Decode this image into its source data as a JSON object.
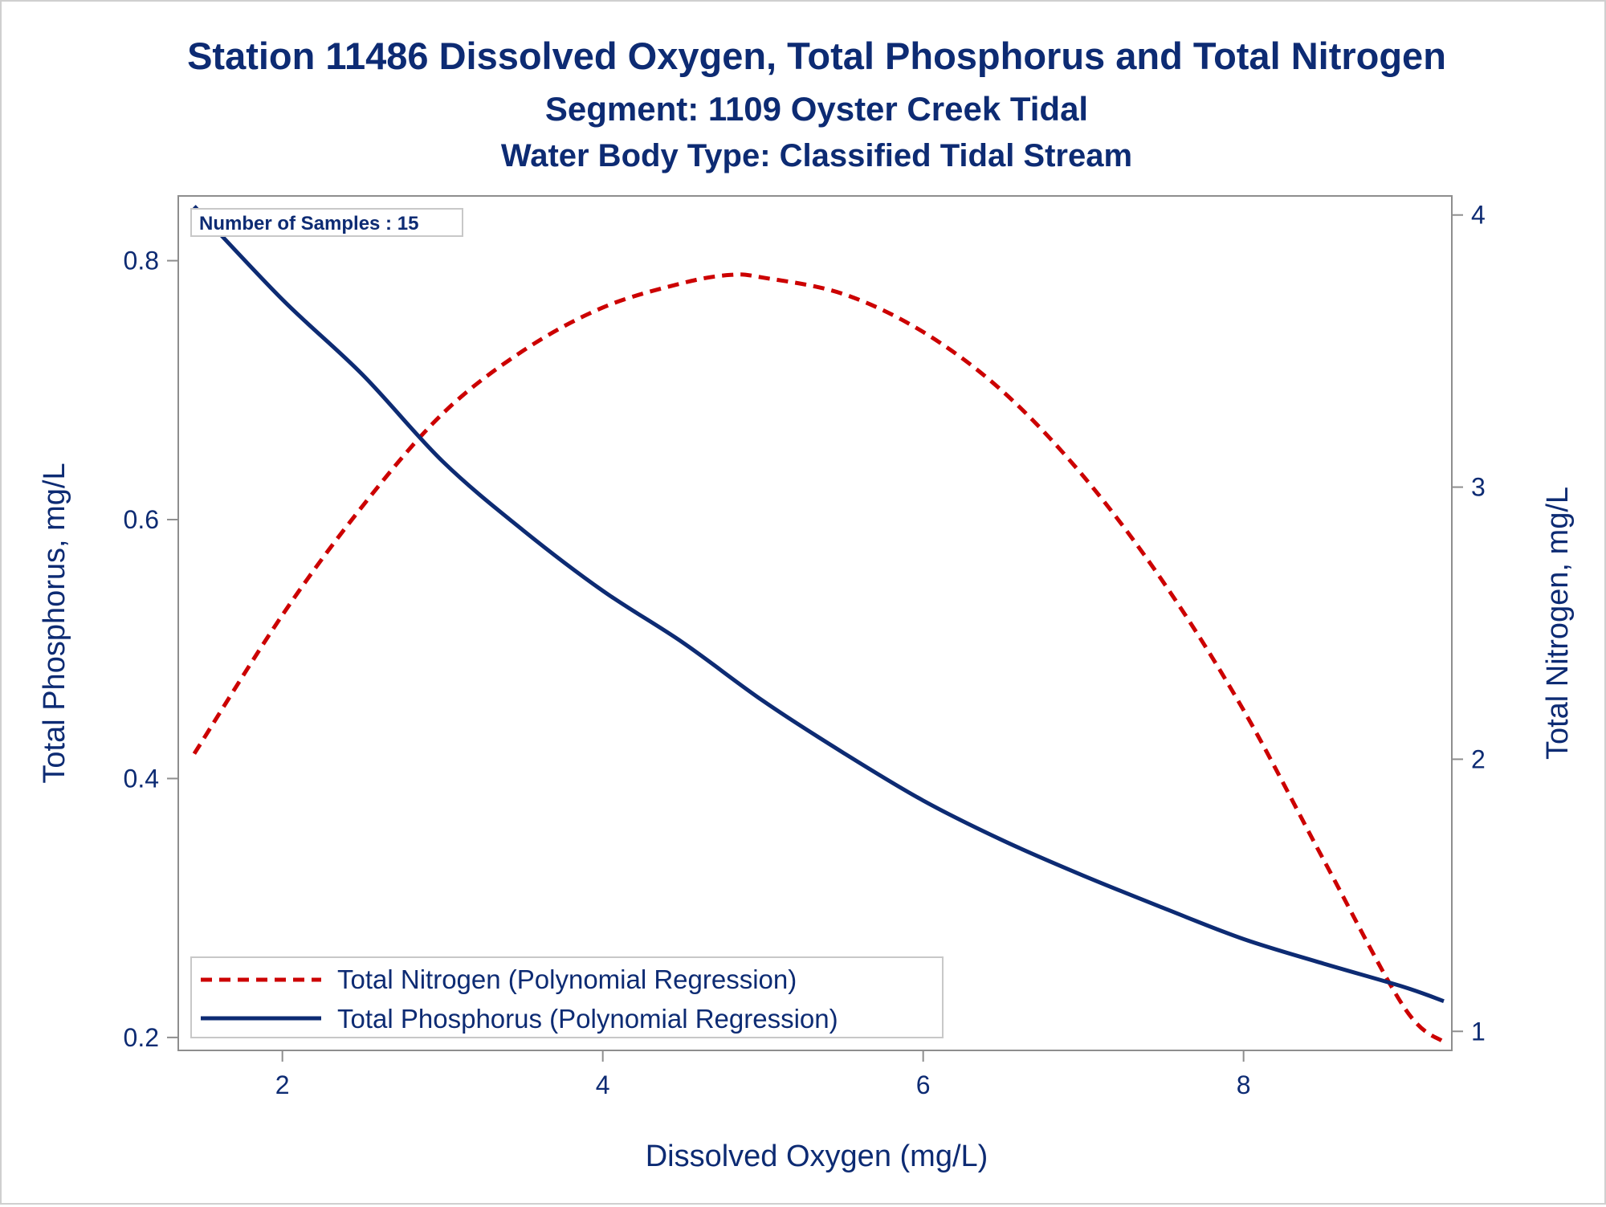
{
  "chart_data": {
    "type": "line",
    "title": "Station 11486  Dissolved Oxygen, Total Phosphorus and Total Nitrogen",
    "subtitle": "Segment: 1109  Oyster Creek Tidal",
    "subtitle2": "Water Body Type: Classified Tidal Stream",
    "xlabel": "Dissolved Oxygen (mg/L)",
    "ylabel_left": "Total Phosphorus, mg/L",
    "ylabel_right": "Total Nitrogen, mg/L",
    "xlim": [
      1.35,
      9.3
    ],
    "ylim_left": [
      0.19,
      0.85
    ],
    "ylim_right": [
      0.93,
      4.07
    ],
    "x_ticks": [
      2,
      4,
      6,
      8
    ],
    "y_left_ticks": [
      0.2,
      0.4,
      0.6,
      0.8
    ],
    "y_right_ticks": [
      1,
      2,
      3,
      4
    ],
    "inset_note": "Number of Samples : 15",
    "legend_position": "bottom-left",
    "series": [
      {
        "name": "Total Nitrogen (Polynomial Regression)",
        "axis": "right",
        "style": "dashed",
        "color": "#cc0000",
        "x": [
          1.45,
          2.0,
          2.5,
          3.0,
          3.5,
          4.0,
          4.5,
          4.8,
          5.0,
          5.5,
          6.0,
          6.5,
          7.0,
          7.5,
          8.0,
          8.5,
          9.0,
          9.25
        ],
        "y": [
          2.02,
          2.53,
          2.93,
          3.27,
          3.5,
          3.66,
          3.75,
          3.78,
          3.77,
          3.71,
          3.57,
          3.35,
          3.04,
          2.65,
          2.18,
          1.63,
          1.09,
          0.96
        ]
      },
      {
        "name": "Total Phosphorus (Polynomial Regression)",
        "axis": "left",
        "style": "solid",
        "color": "#0d2b73",
        "x": [
          1.45,
          2.0,
          2.5,
          3.0,
          3.5,
          4.0,
          4.5,
          5.0,
          5.5,
          6.0,
          6.5,
          7.0,
          7.5,
          8.0,
          8.5,
          9.0,
          9.25
        ],
        "y": [
          0.842,
          0.77,
          0.712,
          0.645,
          0.592,
          0.545,
          0.505,
          0.46,
          0.42,
          0.383,
          0.352,
          0.325,
          0.3,
          0.276,
          0.257,
          0.239,
          0.228
        ]
      }
    ]
  }
}
